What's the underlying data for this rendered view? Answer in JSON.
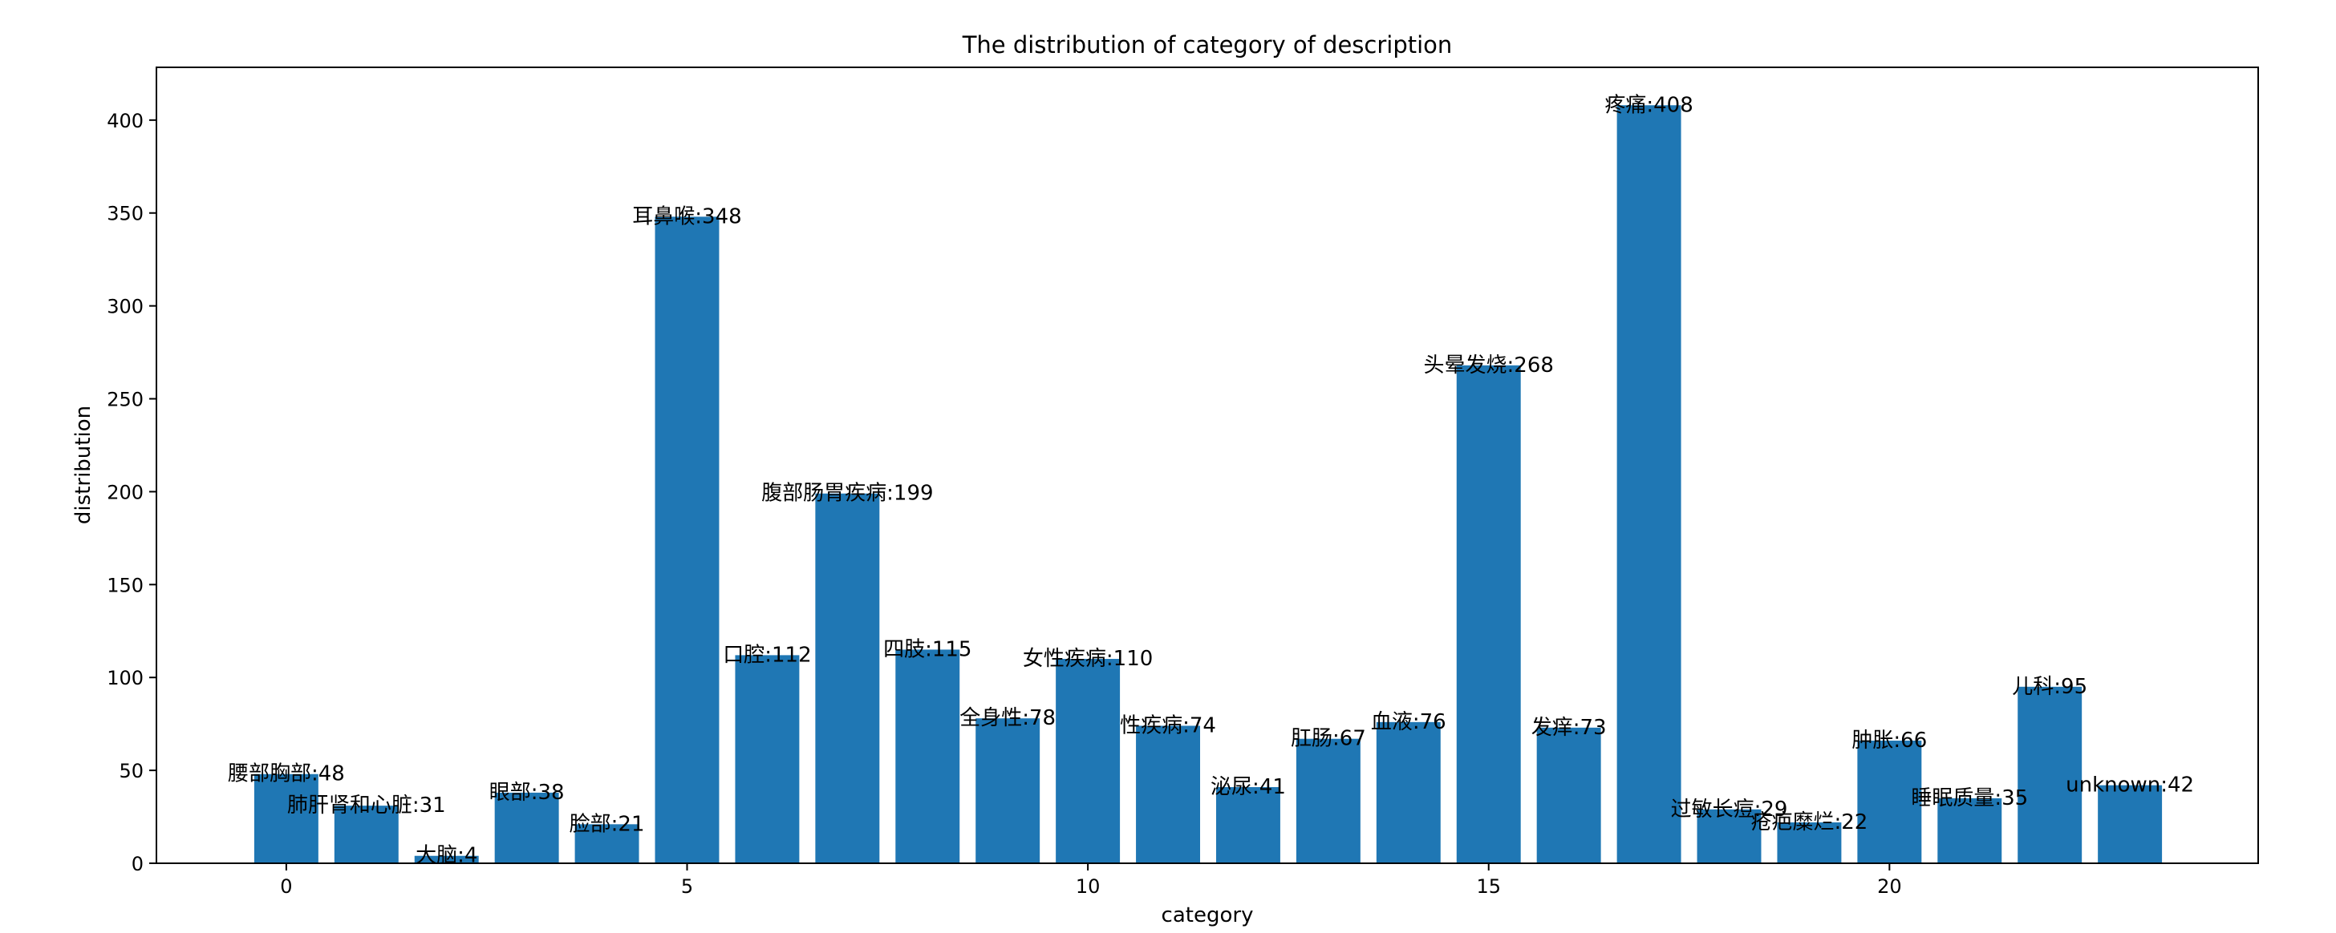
{
  "chart_data": {
    "type": "bar",
    "title": "The distribution of category of description",
    "xlabel": "category",
    "ylabel": "distribution",
    "xlim": [
      -1.62,
      24.6
    ],
    "ylim": [
      0,
      428.4
    ],
    "xticks": [
      0,
      5,
      10,
      15,
      20
    ],
    "yticks": [
      0,
      50,
      100,
      150,
      200,
      250,
      300,
      350,
      400
    ],
    "grid": false,
    "bar_color": "#1f77b4",
    "x": [
      0,
      1,
      2,
      3,
      4,
      5,
      6,
      7,
      8,
      9,
      10,
      11,
      12,
      13,
      14,
      15,
      16,
      17,
      18,
      19,
      20,
      21,
      22,
      23
    ],
    "values": [
      48,
      31,
      4,
      38,
      21,
      348,
      112,
      199,
      115,
      78,
      110,
      74,
      41,
      67,
      76,
      268,
      73,
      408,
      29,
      22,
      66,
      35,
      95,
      42
    ],
    "data_labels": [
      "腰部胸部:48",
      "肺肝肾和心脏:31",
      "大脑:4",
      "眼部:38",
      "脸部:21",
      "耳鼻喉:348",
      "口腔:112",
      "腹部肠胃疾病:199",
      "四肢:115",
      "全身性:78",
      "女性疾病:110",
      "性疾病:74",
      "泌尿:41",
      "肛肠:67",
      "血液:76",
      "头晕发烧:268",
      "发痒:73",
      "疼痛:408",
      "过敏长痘:29",
      "疮疤糜烂:22",
      "肿胀:66",
      "睡眠质量:35",
      "儿科:95",
      "unknown:42"
    ]
  }
}
